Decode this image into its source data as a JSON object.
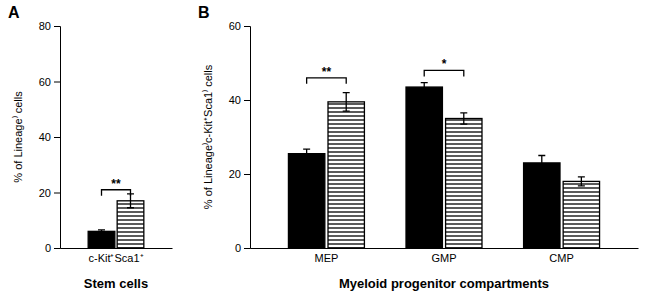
{
  "chart_data": [
    {
      "type": "bar",
      "title": "A",
      "categories": [
        "c-Kit⁺Sca1⁺"
      ],
      "series": [
        {
          "color": "#000000",
          "values": [
            6.0
          ],
          "errors": [
            0.5
          ]
        },
        {
          "color": "#ffffff",
          "values": [
            17.0
          ],
          "errors": [
            2.5
          ]
        }
      ],
      "ylabel": "% of Lineage⁾ cells",
      "xlabel": "Stem cells",
      "ylim": [
        0,
        80
      ],
      "yticks": [
        0,
        20,
        40,
        60,
        80
      ],
      "grid": false,
      "annotations": [
        {
          "text": "**",
          "category": "c-Kit⁺Sca1⁺",
          "y": 21
        }
      ]
    },
    {
      "type": "bar",
      "title": "B",
      "categories": [
        "MEP",
        "GMP",
        "CMP"
      ],
      "series": [
        {
          "color": "#000000",
          "values": [
            25.5,
            43.5,
            23.0
          ],
          "errors": [
            1.2,
            1.2,
            2.0
          ]
        },
        {
          "color": "#ffffff",
          "values": [
            39.5,
            35.0,
            18.0
          ],
          "errors": [
            2.5,
            1.5,
            1.2
          ]
        }
      ],
      "ylabel": "% of Lineage⁾c-Kit⁺Sca1⁾ cells",
      "xlabel": "Myeloid progenitor compartments",
      "ylim": [
        0,
        60
      ],
      "yticks": [
        0,
        20,
        40,
        60
      ],
      "grid": false,
      "annotations": [
        {
          "text": "**",
          "category": "MEP",
          "y": 46
        },
        {
          "text": "*",
          "category": "GMP",
          "y": 48
        }
      ]
    }
  ]
}
